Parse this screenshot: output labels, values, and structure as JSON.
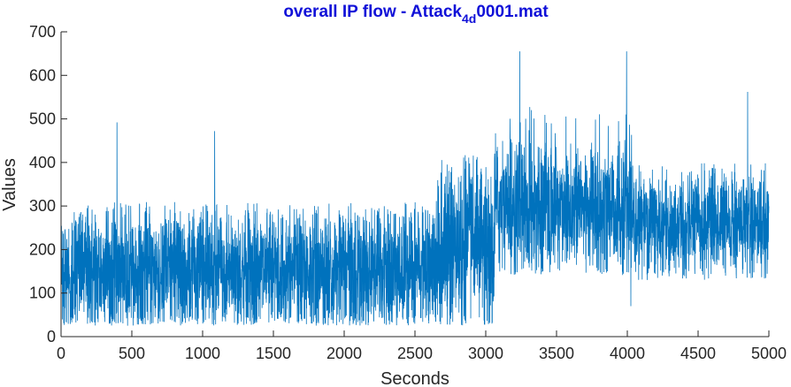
{
  "chart_data": {
    "type": "line",
    "title_main": "overall IP flow - Attack",
    "title_subscript": "4d",
    "title_suffix": "0001.mat",
    "xlabel": "Seconds",
    "ylabel": "Values",
    "xlim": [
      0,
      5000
    ],
    "ylim": [
      0,
      700
    ],
    "xticks": [
      0,
      500,
      1000,
      1500,
      2000,
      2500,
      3000,
      3500,
      4000,
      4500,
      5000
    ],
    "yticks": [
      0,
      100,
      200,
      300,
      400,
      500,
      600,
      700
    ],
    "grid": false,
    "series_color": "#0072BD",
    "title_color": "#1010d8",
    "segments": [
      {
        "x_start": 0,
        "x_end": 2650,
        "center": 150,
        "low": 25,
        "high": 310,
        "noise_sd": 75
      },
      {
        "x_start": 2650,
        "x_end": 3060,
        "center": 200,
        "low": 25,
        "high": 420,
        "noise_sd": 100
      },
      {
        "x_start": 3060,
        "x_end": 4030,
        "center": 300,
        "low": 140,
        "high": 540,
        "noise_sd": 80
      },
      {
        "x_start": 4030,
        "x_end": 5000,
        "center": 255,
        "low": 130,
        "high": 400,
        "noise_sd": 60
      }
    ],
    "spikes": [
      {
        "x": 395,
        "y": 492
      },
      {
        "x": 1085,
        "y": 472
      },
      {
        "x": 3240,
        "y": 655
      },
      {
        "x": 3995,
        "y": 655
      },
      {
        "x": 4850,
        "y": 562
      },
      {
        "x": 4025,
        "y": 70
      },
      {
        "x": 2990,
        "y": 28
      }
    ]
  }
}
